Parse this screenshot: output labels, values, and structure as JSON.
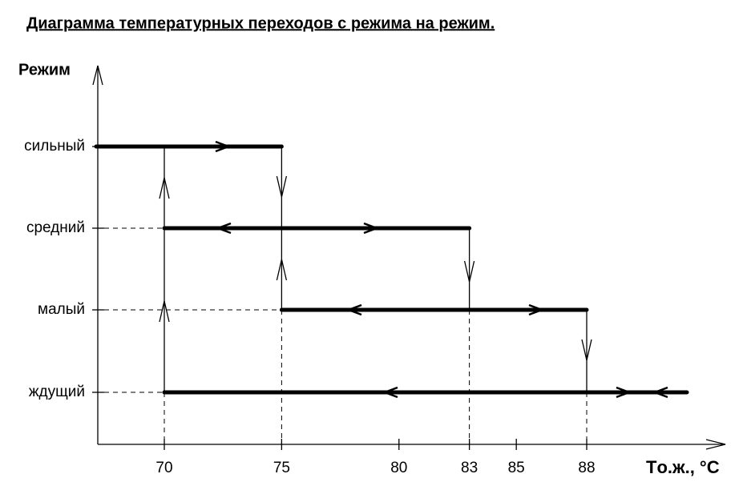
{
  "title": "Диаграмма температурных переходов с режима на режим.",
  "y_axis_label": "Режим",
  "x_axis_label": "Tо.ж., °C",
  "modes": [
    "сильный",
    "средний",
    "малый",
    "ждущий"
  ],
  "x_ticks": [
    70,
    75,
    80,
    83,
    85,
    88
  ]
}
